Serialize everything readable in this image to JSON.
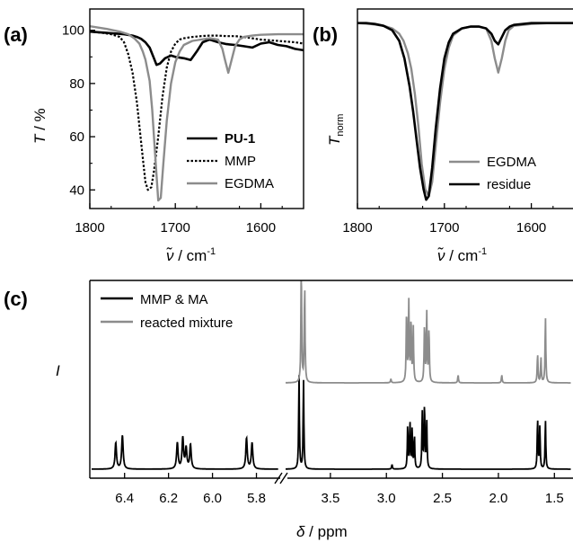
{
  "colors": {
    "black": "#000000",
    "gray": "#8c8c8c"
  },
  "panels": {
    "a": {
      "letter": "(a)",
      "ylabel_main": "T",
      "ylabel_unit": " / %",
      "xlabel_sym": "ν̃",
      "xlabel_unit": " / cm",
      "xlabel_exp": "-1"
    },
    "b": {
      "letter": "(b)",
      "ylabel_main": "T",
      "ylabel_sub": "norm",
      "xlabel_sym": "ν̃",
      "xlabel_unit": " / cm",
      "xlabel_exp": "-1"
    },
    "c": {
      "letter": "(c)",
      "ylabel": "I",
      "xlabel_sym": "δ",
      "xlabel_unit": " / ppm"
    }
  },
  "chart_data": [
    {
      "id": "a",
      "type": "line",
      "xlabel": "ν̃ / cm-1",
      "ylabel": "T / %",
      "xlim": [
        1800,
        1550
      ],
      "ylim": [
        33,
        108
      ],
      "xticks": [
        1800,
        1700,
        1600
      ],
      "yticks": [
        40,
        60,
        80,
        100
      ],
      "legend_position": "bottom-right",
      "series": [
        {
          "name": "PU-1",
          "style": "solid-black-bold",
          "x": [
            1800,
            1780,
            1760,
            1750,
            1745,
            1740,
            1735,
            1730,
            1725,
            1722,
            1718,
            1712,
            1705,
            1700,
            1690,
            1682,
            1675,
            1668,
            1660,
            1650,
            1640,
            1630,
            1620,
            1610,
            1600,
            1590,
            1580,
            1570,
            1560,
            1550
          ],
          "y": [
            99.5,
            99,
            98.5,
            98,
            97.5,
            96.8,
            95.5,
            93.5,
            89.5,
            87,
            87.5,
            89.5,
            90.5,
            90,
            89.5,
            88.8,
            92,
            95.5,
            96.5,
            95.5,
            94.8,
            94.5,
            94,
            93.5,
            95,
            95.5,
            94.5,
            94,
            93,
            92.5
          ]
        },
        {
          "name": "MMP",
          "style": "dotted-black",
          "x": [
            1800,
            1785,
            1775,
            1765,
            1760,
            1755,
            1750,
            1745,
            1742,
            1738,
            1735,
            1732,
            1728,
            1725,
            1720,
            1715,
            1710,
            1705,
            1700,
            1695,
            1690,
            1680,
            1670,
            1660,
            1650,
            1640,
            1630,
            1620,
            1610,
            1600,
            1580,
            1560,
            1550
          ],
          "y": [
            99.5,
            99,
            98.5,
            97.5,
            95.5,
            91,
            84,
            73,
            64,
            52,
            43,
            40,
            41,
            47,
            60,
            75,
            86,
            92,
            95,
            96.5,
            97,
            97.5,
            97.8,
            98,
            98,
            97.8,
            97.8,
            97.5,
            97,
            96.5,
            96,
            95.5,
            95
          ]
        },
        {
          "name": "EGDMA",
          "style": "solid-gray",
          "x": [
            1800,
            1780,
            1765,
            1755,
            1748,
            1742,
            1738,
            1735,
            1730,
            1727,
            1724,
            1720,
            1717,
            1714,
            1710,
            1705,
            1700,
            1695,
            1690,
            1680,
            1670,
            1660,
            1650,
            1645,
            1642,
            1638,
            1634,
            1630,
            1625,
            1620,
            1610,
            1600,
            1580,
            1560,
            1550
          ],
          "y": [
            101.5,
            100.5,
            99.5,
            98.5,
            97,
            95,
            92,
            89,
            81,
            70,
            55,
            36,
            37,
            50,
            66,
            80,
            88,
            92,
            94.5,
            96,
            96.5,
            97,
            96.5,
            93,
            89,
            84,
            89,
            94,
            96.5,
            97.5,
            98,
            98.3,
            98.5,
            98.5,
            98.5
          ]
        }
      ]
    },
    {
      "id": "b",
      "type": "line",
      "xlabel": "ν̃ / cm-1",
      "ylabel": "Tnorm",
      "xlim": [
        1800,
        1550
      ],
      "ylim": [
        -0.05,
        1.08
      ],
      "xticks": [
        1800,
        1700,
        1600
      ],
      "yticks": [],
      "legend_position": "bottom-right",
      "series": [
        {
          "name": "EGDMA",
          "style": "solid-gray",
          "x": [
            1800,
            1785,
            1770,
            1760,
            1752,
            1747,
            1742,
            1738,
            1734,
            1730,
            1726,
            1722,
            1718,
            1714,
            1710,
            1705,
            1700,
            1695,
            1690,
            1680,
            1670,
            1660,
            1652,
            1646,
            1642,
            1638,
            1634,
            1630,
            1626,
            1620,
            1610,
            1600,
            1580,
            1560,
            1550
          ],
          "y": [
            1.0,
            0.995,
            0.985,
            0.97,
            0.94,
            0.9,
            0.83,
            0.74,
            0.6,
            0.42,
            0.2,
            0.06,
            0.02,
            0.1,
            0.3,
            0.55,
            0.74,
            0.86,
            0.93,
            0.97,
            0.98,
            0.98,
            0.97,
            0.9,
            0.8,
            0.72,
            0.8,
            0.9,
            0.96,
            0.985,
            0.99,
            0.995,
            1.0,
            1.0,
            1.0
          ]
        },
        {
          "name": "residue",
          "style": "solid-black-bold",
          "x": [
            1800,
            1790,
            1780,
            1770,
            1760,
            1752,
            1746,
            1740,
            1736,
            1732,
            1728,
            1724,
            1721,
            1718,
            1714,
            1710,
            1705,
            1700,
            1695,
            1690,
            1680,
            1670,
            1660,
            1652,
            1646,
            1642,
            1638,
            1634,
            1630,
            1625,
            1620,
            1610,
            1600,
            1580,
            1560,
            1550
          ],
          "y": [
            1.0,
            1.0,
            0.995,
            0.985,
            0.96,
            0.9,
            0.8,
            0.64,
            0.5,
            0.34,
            0.18,
            0.06,
            0.0,
            0.02,
            0.18,
            0.4,
            0.63,
            0.8,
            0.89,
            0.94,
            0.97,
            0.98,
            0.98,
            0.97,
            0.94,
            0.9,
            0.88,
            0.92,
            0.96,
            0.98,
            0.99,
            0.995,
            1.0,
            1.0,
            1.0,
            1.0
          ]
        }
      ]
    },
    {
      "id": "c",
      "type": "line",
      "xlabel": "δ / ppm",
      "ylabel": "I",
      "x_segments": [
        [
          6.55,
          5.7
        ],
        [
          3.9,
          1.35
        ]
      ],
      "xticks_left": [
        6.4,
        6.2,
        6.0,
        5.8
      ],
      "xticks_right": [
        3.5,
        3.0,
        2.5,
        2.0,
        1.5
      ],
      "xtick_labels_left": [
        "6.4",
        "6.2",
        "6.0",
        "5.8"
      ],
      "xtick_labels_right": [
        "3.5",
        "3.0",
        "2.5",
        "2.0",
        "1.5"
      ],
      "legend_position": "top-left",
      "series": [
        {
          "name": "MMP & MA",
          "style": "solid-black",
          "peaks": [
            [
              6.44,
              0.28
            ],
            [
              6.41,
              0.36
            ],
            [
              6.16,
              0.28
            ],
            [
              6.135,
              0.33
            ],
            [
              6.12,
              0.22
            ],
            [
              6.1,
              0.26
            ],
            [
              5.845,
              0.33
            ],
            [
              5.82,
              0.28
            ],
            [
              3.78,
              1.0
            ],
            [
              3.74,
              0.95
            ],
            [
              2.81,
              0.45
            ],
            [
              2.79,
              0.5
            ],
            [
              2.77,
              0.42
            ],
            [
              2.75,
              0.35
            ],
            [
              2.68,
              0.6
            ],
            [
              2.66,
              0.7
            ],
            [
              2.64,
              0.5
            ],
            [
              2.95,
              0.05
            ],
            [
              1.65,
              0.55
            ],
            [
              1.63,
              0.45
            ],
            [
              1.58,
              0.52
            ]
          ]
        },
        {
          "name": "reacted mixture",
          "style": "solid-gray",
          "peaks": [
            [
              3.76,
              1.2
            ],
            [
              3.73,
              1.0
            ],
            [
              2.82,
              0.75
            ],
            [
              2.8,
              0.8
            ],
            [
              2.78,
              0.65
            ],
            [
              2.76,
              0.55
            ],
            [
              2.66,
              0.6
            ],
            [
              2.64,
              0.7
            ],
            [
              2.62,
              0.55
            ],
            [
              2.36,
              0.08
            ],
            [
              1.97,
              0.08
            ],
            [
              1.65,
              0.3
            ],
            [
              1.62,
              0.25
            ],
            [
              1.58,
              0.66
            ],
            [
              2.96,
              0.04
            ]
          ]
        }
      ]
    }
  ]
}
